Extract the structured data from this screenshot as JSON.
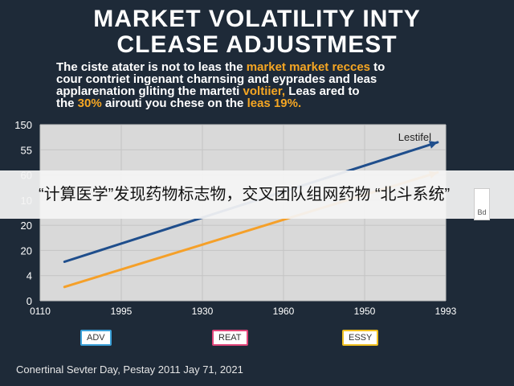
{
  "title": {
    "line1": "MARKET VOLATILITY INTY",
    "line2": "CLEASE ADJUSTMEST"
  },
  "subtitle": {
    "line1_a": "The ciste atater is not to leas the ",
    "line1_hl": "market market recces",
    "line1_b": " to",
    "line2": "cour contriet ingenant charnsing and eyprades and leas",
    "line3_a": "applarenation gliting the marteti ",
    "line3_hl": "voltiier,",
    "line3_b": " Leas ared to",
    "line4_a": "the ",
    "line4_hl": "30%",
    "line4_b": " airouti you chese on the ",
    "line4_hl2": "leas 19%."
  },
  "banner": {
    "text": "“计算医学”发现药物标志物，交叉团队组网药物 “北斗系统”",
    "tag": "Bd"
  },
  "legend": {
    "items": [
      {
        "label": "ADV",
        "color": "#3aa0d8"
      },
      {
        "label": "REAT",
        "color": "#e0457a"
      },
      {
        "label": "ESSY",
        "color": "#f0c020"
      }
    ]
  },
  "footer": "Conertinal Sevter Day, Pestay 2011 Jay 71, 2021",
  "colors": {
    "background": "#1e2a38",
    "plot_bg": "#d9d9d9",
    "grid": "#c4c4c4",
    "highlight": "#f5a623"
  },
  "chart_data": {
    "type": "line",
    "title": "",
    "xlabel": "",
    "ylabel": "",
    "y_ticks": [
      {
        "label": "0",
        "value": 0
      },
      {
        "label": "4",
        "value": 1
      },
      {
        "label": "20",
        "value": 2
      },
      {
        "label": "20",
        "value": 3
      },
      {
        "label": "10",
        "value": 4
      },
      {
        "label": "60",
        "value": 5
      },
      {
        "label": "55",
        "value": 6
      },
      {
        "label": "150",
        "value": 7
      }
    ],
    "x_ticks": [
      {
        "label": "0110",
        "value": 0
      },
      {
        "label": "1995",
        "value": 1
      },
      {
        "label": "1930",
        "value": 2
      },
      {
        "label": "1960",
        "value": 3
      },
      {
        "label": "1950",
        "value": 4
      },
      {
        "label": "1993",
        "value": 5
      }
    ],
    "xlim": [
      0,
      5
    ],
    "ylim": [
      0,
      7
    ],
    "grid": true,
    "annotation": {
      "text": "Lestifel"
    },
    "series": [
      {
        "color": "#1f4e8c",
        "x": [
          0.3,
          4.9
        ],
        "y": [
          1.55,
          6.3
        ]
      },
      {
        "color": "#f5a029",
        "x": [
          0.3,
          4.9
        ],
        "y": [
          0.55,
          5.1
        ]
      }
    ]
  }
}
